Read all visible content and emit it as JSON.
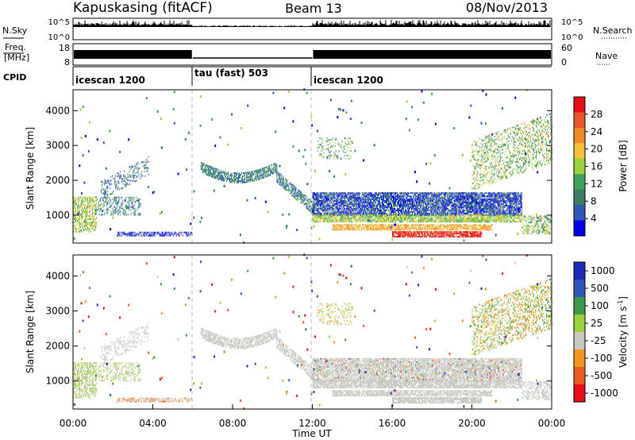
{
  "header": {
    "station": "Kapuskasing (fitACF)",
    "beam": "Beam 13",
    "date": "08/Nov/2013"
  },
  "noise_panel": {
    "left_label": "N.Sky",
    "right_label": "N.Search",
    "left_ticks": [
      "10^5",
      "10^0"
    ],
    "right_ticks": [
      "10^5",
      "10^0"
    ]
  },
  "freq_panel": {
    "left_label_1": "Freq.",
    "left_label_2": "[MHz]",
    "right_label": "Nave",
    "left_ticks": [
      "18",
      "8"
    ],
    "right_ticks": [
      "60",
      "0"
    ]
  },
  "cpid_panel": {
    "label": "CPID",
    "segments": [
      {
        "name": "icescan 1200",
        "start_hour": 0,
        "end_hour": 6
      },
      {
        "name": "tau (fast) 503",
        "start_hour": 6,
        "end_hour": 12
      },
      {
        "name": "icescan 1200",
        "start_hour": 12,
        "end_hour": 24
      }
    ]
  },
  "colors": {
    "power": [
      "#0000e6",
      "#2f56b8",
      "#3b7e63",
      "#3fa25a",
      "#9ad23e",
      "#f2c23a",
      "#f08a2b",
      "#e8572e",
      "#e3101b"
    ],
    "velocity": [
      "#e3101b",
      "#ec5a23",
      "#f39422",
      "#c8c8c0",
      "#9ad23e",
      "#3b9a4a",
      "#2f56b8",
      "#1d2ab8"
    ]
  },
  "chart_data": [
    {
      "type": "heatmap",
      "panel": "power",
      "ylabel": "Slant Range [km]",
      "xlim_hours": [
        0,
        24
      ],
      "ylim": [
        200,
        4600
      ],
      "yticks": [
        1000,
        2000,
        3000,
        4000
      ],
      "colorbar": {
        "label": "Power [dB]",
        "ticks": [
          "4",
          "8",
          "12",
          "16",
          "20",
          "24",
          "28"
        ],
        "range": [
          0,
          32
        ]
      }
    },
    {
      "type": "heatmap",
      "panel": "velocity",
      "ylabel": "Slant Range [km]",
      "xlabel": "Time UT",
      "xlim_hours": [
        0,
        24
      ],
      "ylim": [
        200,
        4600
      ],
      "yticks": [
        1000,
        2000,
        3000,
        4000
      ],
      "xticks": [
        "00:00",
        "04:00",
        "08:00",
        "12:00",
        "16:00",
        "20:00",
        "00:00"
      ],
      "colorbar": {
        "label": "Velocity [m s",
        "label_superscript": "-1",
        "label_close": "]",
        "ticks": [
          "1000",
          "500",
          "100",
          "25",
          "-25",
          "-100",
          "-500",
          "-1000"
        ]
      }
    }
  ]
}
